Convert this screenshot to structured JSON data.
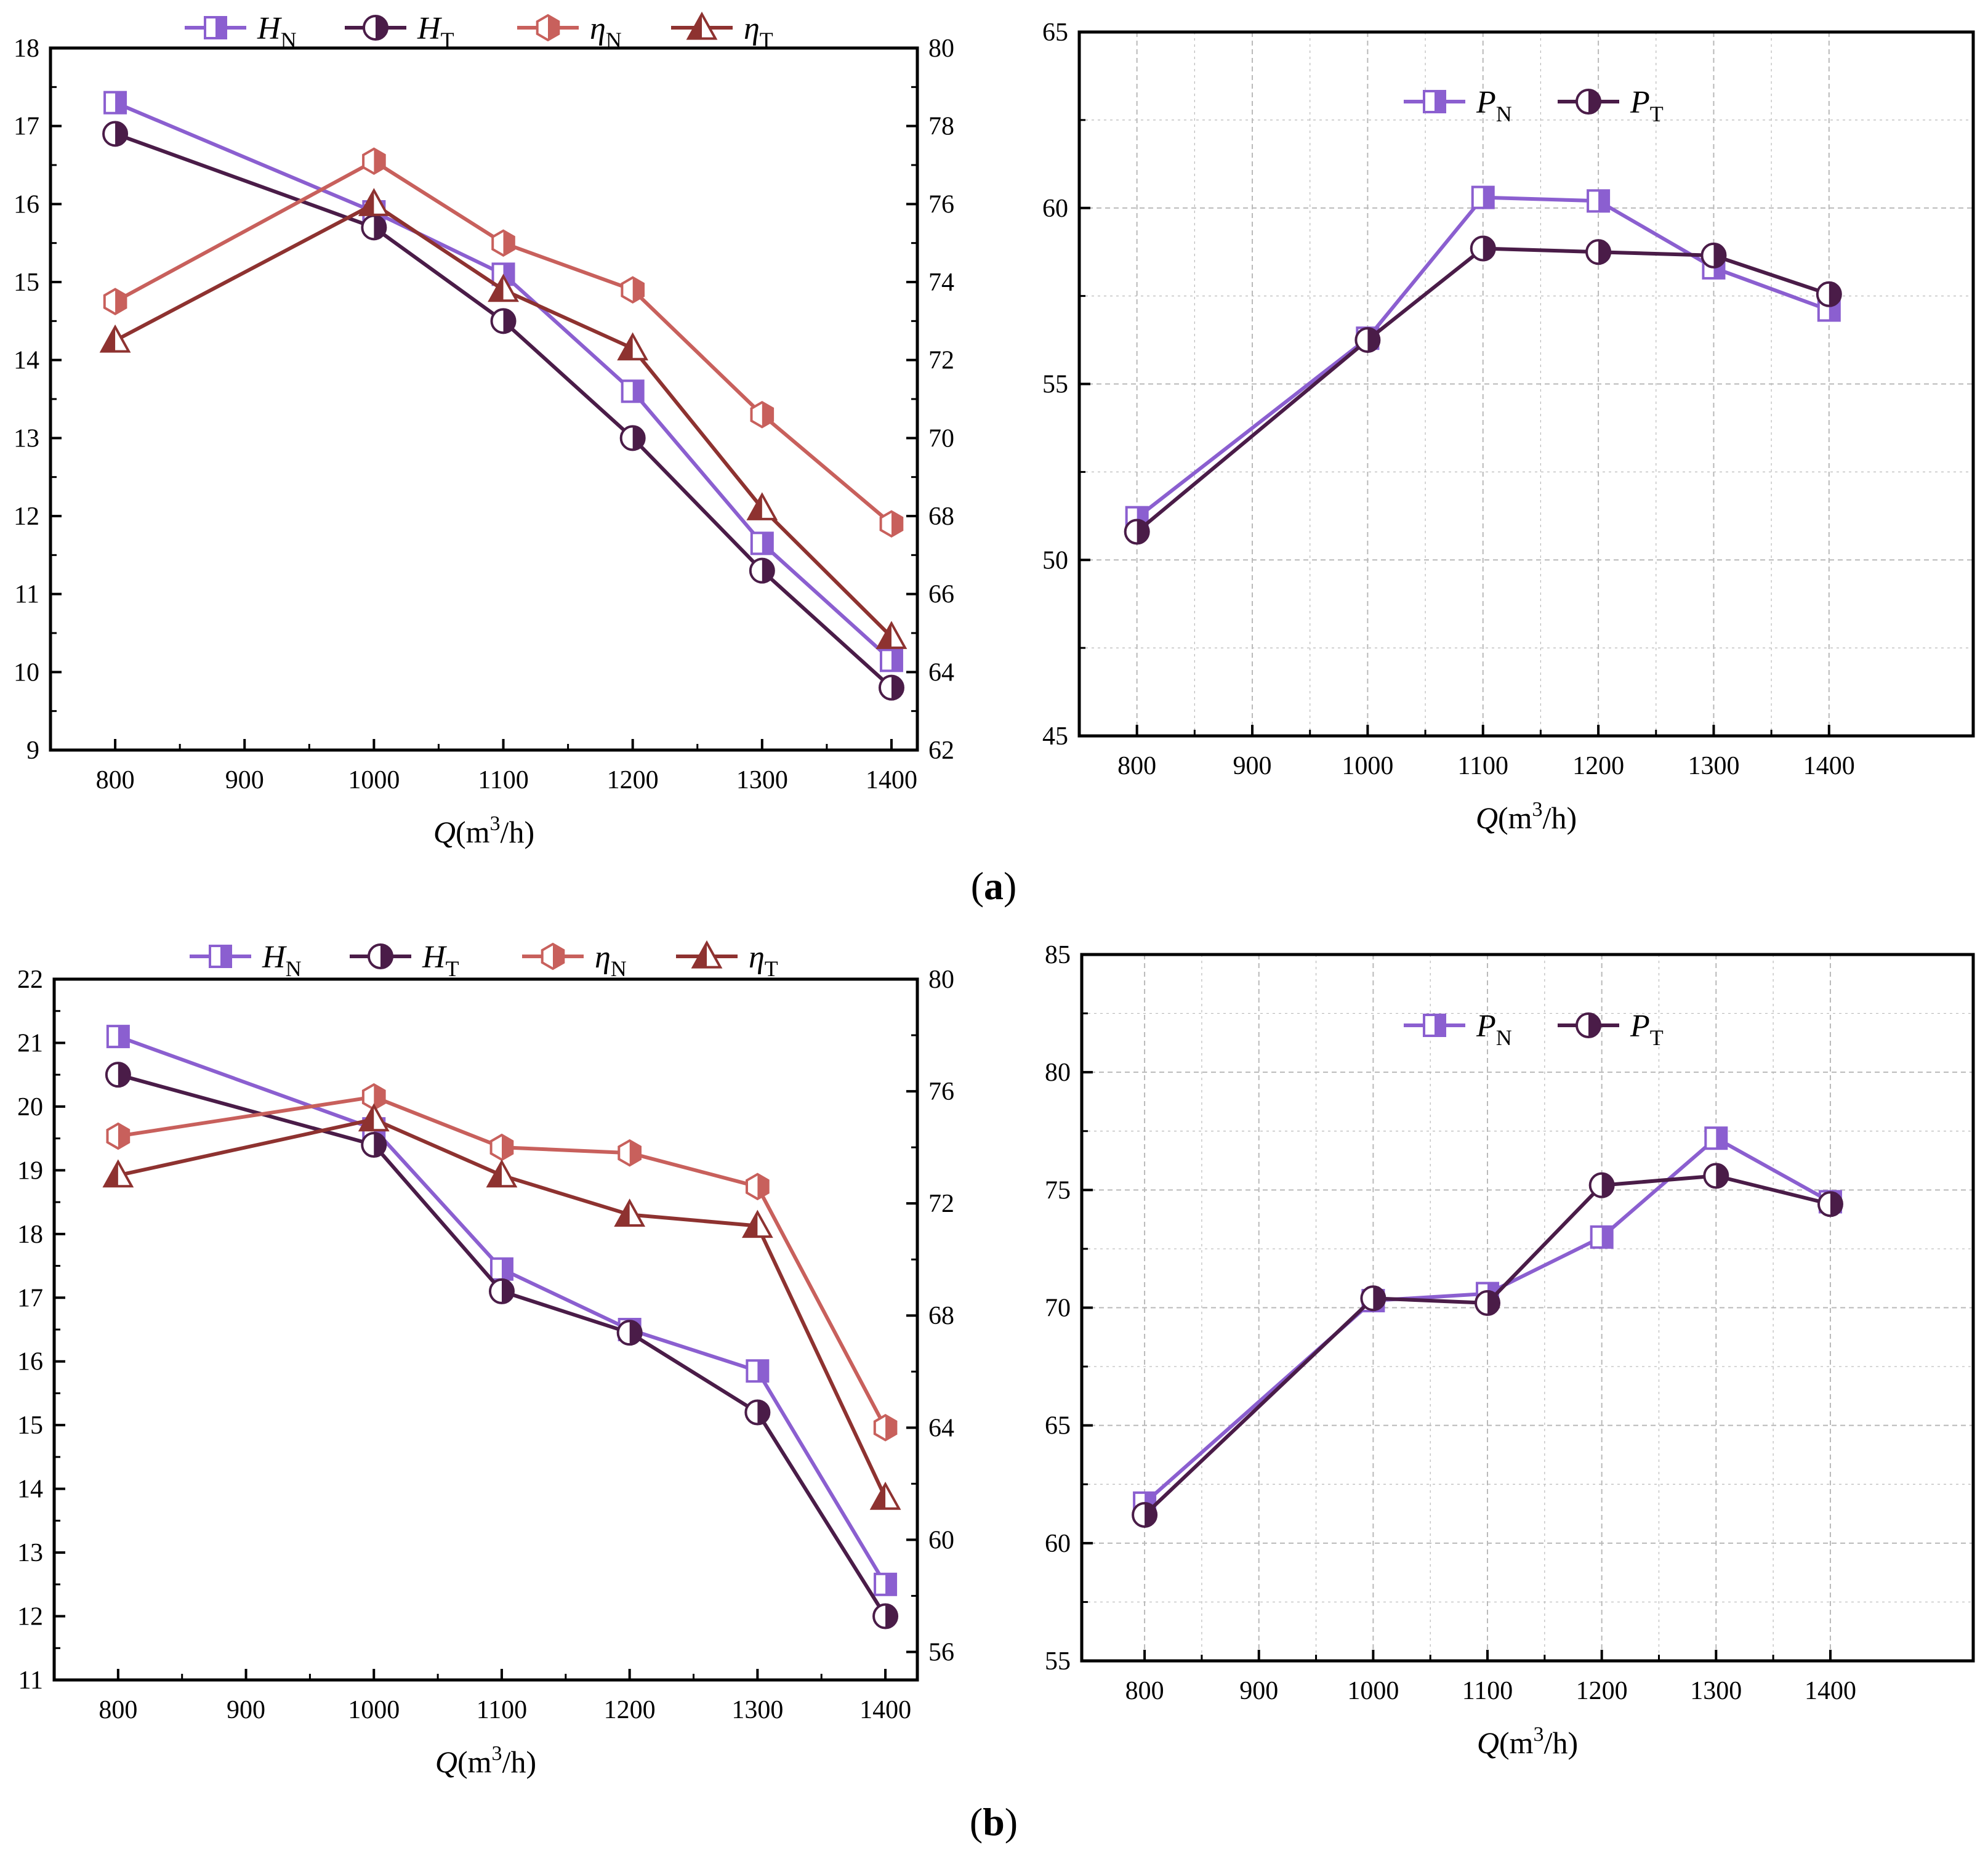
{
  "panel_labels": [
    {
      "open": "(",
      "letter": "a",
      "close": ")"
    },
    {
      "open": "(",
      "letter": "b",
      "close": ")"
    }
  ],
  "colors": {
    "H_N": "#8b5fd0",
    "H_T": "#4a1c48",
    "eta_N": "#c8605c",
    "eta_T": "#8e3230",
    "P_N": "#8b5fd0",
    "P_T": "#4a1c48",
    "grid": "#b9b9b9"
  },
  "chart_data": [
    {
      "id": "a-left",
      "type": "line",
      "dual_axis": true,
      "x": [
        800,
        1000,
        1100,
        1200,
        1300,
        1400
      ],
      "xlim": [
        750,
        1420
      ],
      "xticks": [
        "800",
        "900",
        "1000",
        "1100",
        "1200",
        "1300",
        "1400"
      ],
      "xlabel": {
        "var": "Q",
        "unit_open": "(m",
        "sup": "3",
        "unit_close": "/h)"
      },
      "ylim": [
        9,
        18
      ],
      "yticks": [
        "9",
        "10",
        "11",
        "12",
        "13",
        "14",
        "15",
        "16",
        "17",
        "18"
      ],
      "y2lim": [
        62,
        80
      ],
      "y2ticks": [
        "62",
        "64",
        "66",
        "68",
        "70",
        "72",
        "74",
        "76",
        "78",
        "80"
      ],
      "grid": false,
      "legend_position": "top",
      "series": [
        {
          "key": "H_N",
          "sym": "H",
          "sub": "N",
          "marker": "square",
          "axis": "left",
          "values": [
            17.3,
            15.9,
            15.1,
            13.6,
            11.65,
            10.15
          ]
        },
        {
          "key": "H_T",
          "sym": "H",
          "sub": "T",
          "marker": "circle",
          "axis": "left",
          "values": [
            16.9,
            15.7,
            14.5,
            13.0,
            11.3,
            9.8
          ]
        },
        {
          "key": "eta_N",
          "sym": "η",
          "sub": "N",
          "marker": "hexagon",
          "axis": "right",
          "values": [
            73.5,
            77.1,
            75.0,
            73.8,
            70.6,
            67.8
          ]
        },
        {
          "key": "eta_T",
          "sym": "η",
          "sub": "T",
          "marker": "triangle",
          "axis": "right",
          "values": [
            72.5,
            76.0,
            73.8,
            72.3,
            68.2,
            64.9
          ]
        }
      ]
    },
    {
      "id": "a-right",
      "type": "line",
      "dual_axis": false,
      "x": [
        800,
        1000,
        1100,
        1200,
        1300,
        1400
      ],
      "xlim": [
        750,
        1525
      ],
      "xticks": [
        "800",
        "900",
        "1000",
        "1100",
        "1200",
        "1300",
        "1400"
      ],
      "xlabel": {
        "var": "Q",
        "unit_open": "(m",
        "sup": "3",
        "unit_close": "/h)"
      },
      "ylim": [
        45,
        65
      ],
      "yticks": [
        "45",
        "50",
        "55",
        "60",
        "65"
      ],
      "grid": true,
      "legend_position": "top-center",
      "series": [
        {
          "key": "P_N",
          "sym": "P",
          "sub": "N",
          "marker": "square",
          "axis": "left",
          "values": [
            51.2,
            56.3,
            60.3,
            60.2,
            58.3,
            57.1
          ]
        },
        {
          "key": "P_T",
          "sym": "P",
          "sub": "T",
          "marker": "circle",
          "axis": "left",
          "values": [
            50.8,
            56.25,
            58.85,
            58.75,
            58.65,
            57.55
          ]
        }
      ]
    },
    {
      "id": "b-left",
      "type": "line",
      "dual_axis": true,
      "x": [
        800,
        1000,
        1100,
        1200,
        1300,
        1400
      ],
      "xlim": [
        750,
        1425
      ],
      "xticks": [
        "800",
        "900",
        "1000",
        "1100",
        "1200",
        "1300",
        "1400"
      ],
      "xlabel": {
        "var": "Q",
        "unit_open": "(m",
        "sup": "3",
        "unit_close": "/h)"
      },
      "ylim": [
        11,
        22
      ],
      "yticks": [
        "11",
        "12",
        "13",
        "14",
        "15",
        "16",
        "17",
        "18",
        "19",
        "20",
        "21",
        "22"
      ],
      "y2lim": [
        55,
        80
      ],
      "y2ticks": [
        "56",
        "60",
        "64",
        "68",
        "72",
        "76",
        "80"
      ],
      "grid": false,
      "legend_position": "top",
      "series": [
        {
          "key": "H_N",
          "sym": "H",
          "sub": "N",
          "marker": "square",
          "axis": "left",
          "values": [
            21.1,
            19.65,
            17.45,
            16.5,
            15.85,
            12.5
          ]
        },
        {
          "key": "H_T",
          "sym": "H",
          "sub": "T",
          "marker": "circle",
          "axis": "left",
          "values": [
            20.5,
            19.4,
            17.1,
            16.45,
            15.2,
            12.0
          ]
        },
        {
          "key": "eta_N",
          "sym": "η",
          "sub": "N",
          "marker": "hexagon",
          "axis": "right",
          "values": [
            74.4,
            75.8,
            74.0,
            73.8,
            72.6,
            64.0
          ]
        },
        {
          "key": "eta_T",
          "sym": "η",
          "sub": "T",
          "marker": "triangle",
          "axis": "right",
          "values": [
            73.0,
            75.0,
            73.0,
            71.6,
            71.2,
            61.5
          ]
        }
      ]
    },
    {
      "id": "b-right",
      "type": "line",
      "dual_axis": false,
      "x": [
        800,
        1000,
        1100,
        1200,
        1300,
        1400
      ],
      "xlim": [
        745,
        1525
      ],
      "xticks": [
        "800",
        "900",
        "1000",
        "1100",
        "1200",
        "1300",
        "1400"
      ],
      "xlabel": {
        "var": "Q",
        "unit_open": "(m",
        "sup": "3",
        "unit_close": "/h)"
      },
      "ylim": [
        55,
        85
      ],
      "yticks": [
        "55",
        "60",
        "65",
        "70",
        "75",
        "80",
        "85"
      ],
      "grid": true,
      "legend_position": "top-center",
      "series": [
        {
          "key": "P_N",
          "sym": "P",
          "sub": "N",
          "marker": "square",
          "axis": "left",
          "values": [
            61.7,
            70.3,
            70.6,
            73.0,
            77.2,
            74.5
          ]
        },
        {
          "key": "P_T",
          "sym": "P",
          "sub": "T",
          "marker": "circle",
          "axis": "left",
          "values": [
            61.2,
            70.4,
            70.2,
            75.2,
            75.6,
            74.4
          ]
        }
      ]
    }
  ]
}
